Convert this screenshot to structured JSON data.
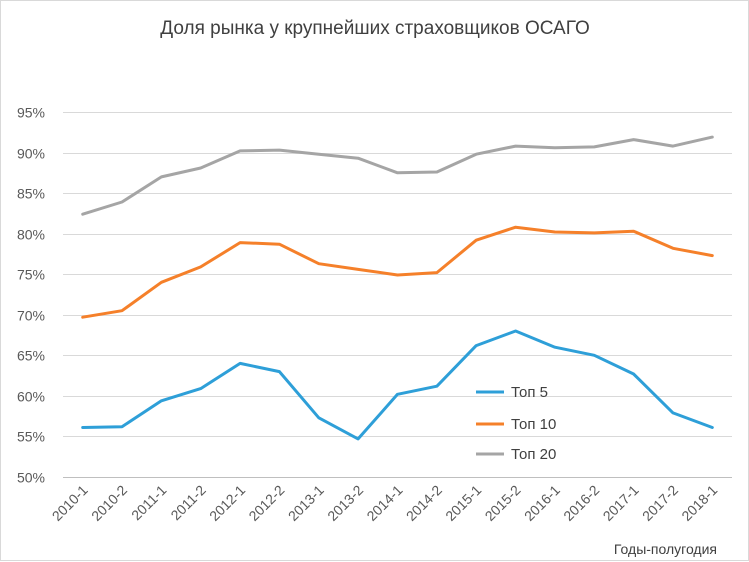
{
  "chart_data": {
    "type": "line",
    "title": "Доля рынка у крупнейших  страховщиков ОСАГО",
    "xlabel": "Годы-полугодия",
    "ylabel": "",
    "ylim": [
      0.5,
      0.95
    ],
    "ytick_step": 0.05,
    "ytick_labels": [
      "50%",
      "55%",
      "60%",
      "65%",
      "70%",
      "75%",
      "80%",
      "85%",
      "90%",
      "95%"
    ],
    "grid": true,
    "legend": "right-bottom",
    "categories": [
      "2010-1",
      "2010-2",
      "2011-1",
      "2011-2",
      "2012-1",
      "2012-2",
      "2013-1",
      "2013-2",
      "2014-1",
      "2014-2",
      "2015-1",
      "2015-2",
      "2016-1",
      "2016-2",
      "2017-1",
      "2017-2",
      "2018-1"
    ],
    "series": [
      {
        "name": "Топ 5",
        "color": "#2e9fd8",
        "values": [
          0.561,
          0.562,
          0.594,
          0.609,
          0.64,
          0.63,
          0.573,
          0.547,
          0.602,
          0.612,
          0.662,
          0.68,
          0.66,
          0.65,
          0.627,
          0.579,
          0.561
        ]
      },
      {
        "name": "Топ 10",
        "color": "#f5802a",
        "values": [
          0.697,
          0.705,
          0.74,
          0.759,
          0.789,
          0.787,
          0.763,
          0.756,
          0.749,
          0.752,
          0.792,
          0.808,
          0.802,
          0.801,
          0.803,
          0.782,
          0.773
        ]
      },
      {
        "name": "Топ 20",
        "color": "#a5a5a5",
        "values": [
          0.824,
          0.839,
          0.87,
          0.881,
          0.902,
          0.903,
          0.898,
          0.893,
          0.875,
          0.876,
          0.898,
          0.908,
          0.906,
          0.907,
          0.916,
          0.908,
          0.919
        ]
      }
    ]
  }
}
